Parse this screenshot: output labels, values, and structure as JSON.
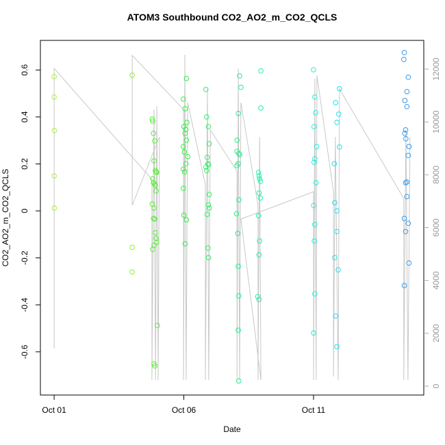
{
  "chart_data": {
    "type": "scatter",
    "title": "ATOM3 Southbound CO2_AO2_m_CO2_QCLS",
    "xlabel": "Date",
    "ylabel": "CO2_AO2_m_CO2_QCLS",
    "xlim": [
      0.47,
      15.25
    ],
    "xticks": [
      {
        "value": 1,
        "label": "Oct 01"
      },
      {
        "value": 6,
        "label": "Oct 06"
      },
      {
        "value": 11,
        "label": "Oct 11"
      }
    ],
    "ylim": [
      -0.784,
      0.726
    ],
    "yticks": [
      -0.6,
      -0.4,
      -0.2,
      0.0,
      0.2,
      0.4,
      0.6
    ],
    "y2lim": [
      -337,
      13088
    ],
    "y2ticks": [
      0,
      2000,
      4000,
      6000,
      8000,
      10000,
      12000
    ],
    "series": [
      {
        "type": "line",
        "axis": "y2",
        "color": "#c8c8c8",
        "x": [
          1.0,
          1.0,
          4.77,
          4.77,
          4.85,
          4.91,
          4.96,
          5.01,
          5.06,
          4.01,
          4.01,
          5.99,
          5.99,
          6.04,
          6.09,
          6.15,
          6.83,
          6.83,
          6.91,
          6.96,
          7.02,
          8.05,
          8.05,
          8.1,
          8.15,
          8.2,
          8.86,
          8.86,
          8.92,
          8.97,
          8.2,
          11.0,
          11.0,
          11.05,
          11.1,
          11.13,
          11.77,
          11.77,
          11.84,
          11.95,
          12.0,
          14.48,
          14.48,
          14.56,
          14.64,
          14.72
        ],
        "values": [
          1426,
          12026,
          7828,
          233,
          10472,
          233,
          10601,
          233,
          9435,
          6843,
          12520,
          10472,
          233,
          12545,
          233,
          10731,
          7621,
          233,
          11249,
          233,
          9694,
          8139,
          233,
          12026,
          233,
          10731,
          6843,
          233,
          9435,
          233,
          6324,
          7361,
          233,
          11638,
          233,
          11767,
          7361,
          363,
          9435,
          233,
          11249,
          7102,
          233,
          9694,
          233,
          9435
        ]
      },
      {
        "color": "#aaee44",
        "x": [
          1.0,
          1.0,
          1.01,
          1.0,
          1.01
        ],
        "values": [
          0.572,
          0.485,
          0.342,
          0.149,
          0.012
        ]
      },
      {
        "color": "#88ee33",
        "x": [
          4.01,
          4.01,
          4.01
        ],
        "values": [
          0.578,
          -0.155,
          -0.26
        ]
      },
      {
        "color": "#55ee33",
        "x": [
          4.78,
          4.8,
          4.83,
          4.88,
          4.85,
          4.9,
          4.93,
          4.95,
          4.8,
          4.83,
          4.88,
          4.9,
          4.93,
          4.78,
          4.85,
          4.83,
          4.88,
          4.9,
          4.93,
          4.95,
          4.85,
          4.8,
          4.98,
          4.85,
          4.88
        ],
        "values": [
          0.391,
          0.382,
          0.33,
          0.298,
          0.213,
          0.172,
          0.166,
          0.164,
          0.137,
          0.12,
          0.114,
          0.108,
          0.085,
          0.029,
          0.012,
          -0.032,
          -0.035,
          -0.093,
          -0.117,
          -0.134,
          -0.146,
          -0.164,
          -0.488,
          -0.651,
          -0.66
        ]
      },
      {
        "color": "#33ee44",
        "x": [
          6.1,
          5.98,
          6.05,
          6.12,
          6.0,
          6.08,
          6.05,
          6.1,
          5.98,
          6.02,
          6.15,
          6.08,
          5.98,
          6.03,
          5.98,
          6.0,
          6.1,
          6.05
        ],
        "values": [
          0.564,
          0.476,
          0.435,
          0.377,
          0.359,
          0.347,
          0.33,
          0.301,
          0.274,
          0.251,
          0.231,
          0.201,
          0.178,
          0.166,
          0.096,
          -0.018,
          -0.038,
          -0.14
        ]
      },
      {
        "color": "#33ee66",
        "x": [
          6.85,
          6.88,
          6.95,
          6.98,
          6.9,
          6.93,
          6.95,
          6.85,
          6.88,
          6.98,
          6.95,
          6.98,
          6.9,
          6.93,
          6.95
        ],
        "values": [
          0.517,
          0.4,
          0.359,
          0.286,
          0.228,
          0.201,
          0.196,
          0.187,
          0.172,
          0.07,
          0.026,
          0.012,
          -0.015,
          -0.158,
          -0.199
        ]
      },
      {
        "color": "#22ee88",
        "x": [
          8.15,
          8.2,
          8.1,
          8.05,
          8.05,
          8.12,
          8.15,
          8.1,
          8.05,
          8.12,
          8.03,
          8.08,
          8.1,
          8.12,
          8.1,
          8.12
        ],
        "values": [
          0.575,
          0.526,
          0.415,
          0.301,
          0.254,
          0.245,
          0.239,
          0.201,
          0.193,
          0.047,
          -0.012,
          -0.096,
          -0.236,
          -0.362,
          -0.508,
          -0.724
        ]
      },
      {
        "color": "#22eeaa",
        "x": [
          8.97,
          8.97,
          8.88,
          8.9,
          8.92,
          8.95,
          8.9,
          8.95,
          8.88,
          8.92,
          8.9,
          8.85,
          8.9
        ],
        "values": [
          0.596,
          0.438,
          0.164,
          0.149,
          0.137,
          0.126,
          0.076,
          0.055,
          -0.02,
          -0.128,
          -0.187,
          -0.365,
          -0.377
        ]
      },
      {
        "color": "#22eedd",
        "x": [
          11.0,
          11.05,
          11.08,
          11.02,
          11.12,
          11.05,
          11.02,
          11.1,
          11.0,
          11.05,
          11.03,
          11.05,
          11.0
        ],
        "values": [
          0.601,
          0.485,
          0.418,
          0.359,
          0.274,
          0.222,
          0.207,
          0.12,
          0.023,
          -0.058,
          -0.128,
          -0.353,
          -0.52
        ]
      },
      {
        "color": "#22ddee",
        "x": [
          12.0,
          11.85,
          11.97,
          11.9,
          12.0,
          11.8,
          11.82,
          11.9,
          11.9,
          11.82,
          11.95,
          11.85,
          11.9
        ],
        "values": [
          0.52,
          0.461,
          0.412,
          0.377,
          0.272,
          0.201,
          0.035,
          0.0,
          -0.088,
          -0.199,
          -0.251,
          -0.447,
          -0.578
        ]
      },
      {
        "color": "#3399ee",
        "x": [
          14.5,
          14.48,
          14.65,
          14.6,
          14.52,
          14.6,
          14.55,
          14.52,
          14.56,
          14.68,
          14.65,
          14.6,
          14.55,
          14.6,
          14.5,
          14.65,
          14.55,
          14.68,
          14.5
        ],
        "values": [
          0.674,
          0.645,
          0.569,
          0.508,
          0.47,
          0.444,
          0.345,
          0.33,
          0.307,
          0.274,
          0.236,
          0.123,
          0.12,
          0.061,
          -0.032,
          -0.053,
          -0.088,
          -0.222,
          -0.318
        ]
      }
    ]
  }
}
